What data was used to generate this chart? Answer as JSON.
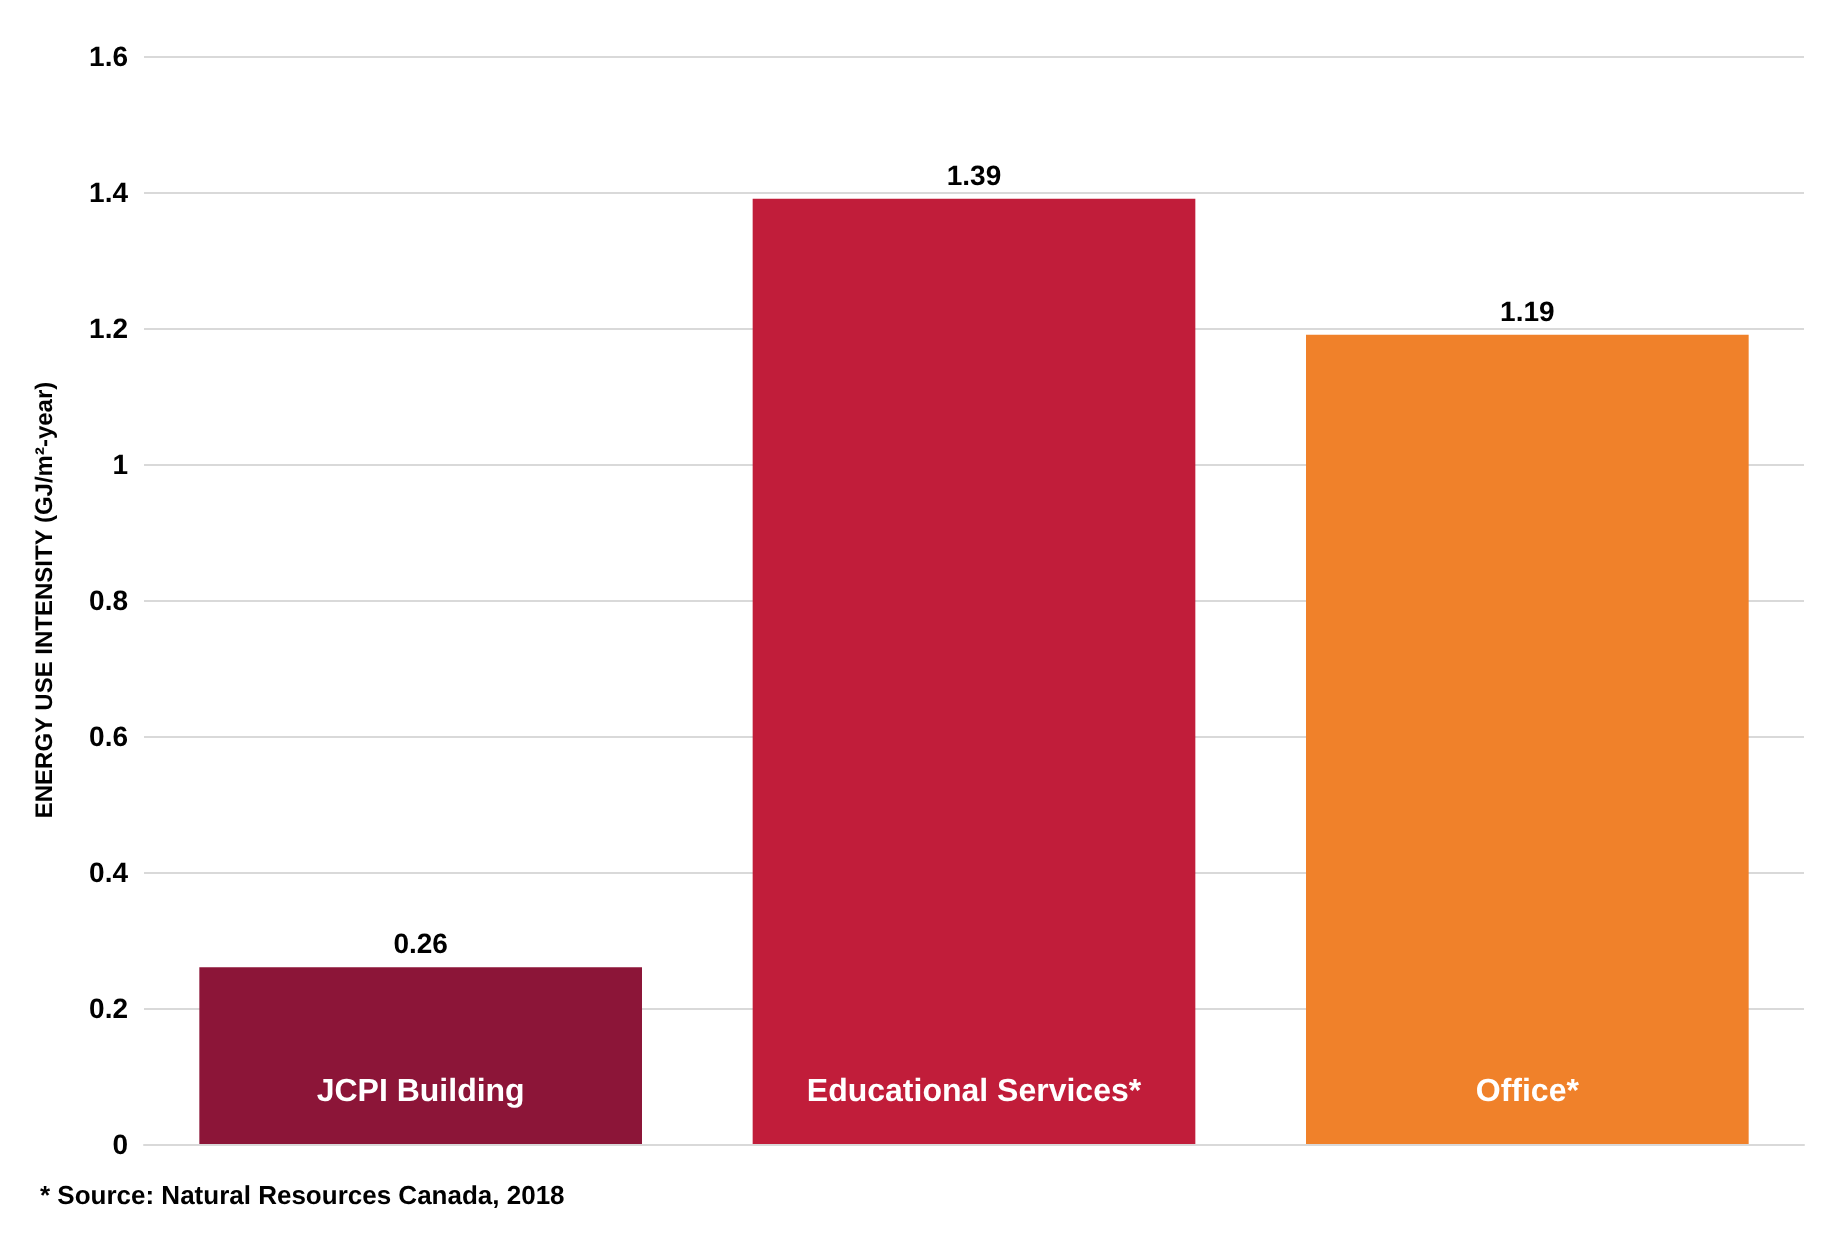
{
  "chart_data": {
    "type": "bar",
    "ylabel": "ENERGY USE INTENSITY (GJ/m²-year)",
    "categories": [
      "JCPI Building",
      "Educational Services*",
      "Office*"
    ],
    "values": [
      0.26,
      1.39,
      1.19
    ],
    "colors": [
      "#8c1538",
      "#c11d3a",
      "#f0812a"
    ],
    "ylim": [
      0,
      1.6
    ],
    "yticks": [
      0,
      0.2,
      0.4,
      0.6,
      0.8,
      1,
      1.2,
      1.4,
      1.6
    ],
    "grid": "y",
    "data_labels": true,
    "annotations": [
      "* Source: Natural Resources Canada, 2018"
    ]
  }
}
